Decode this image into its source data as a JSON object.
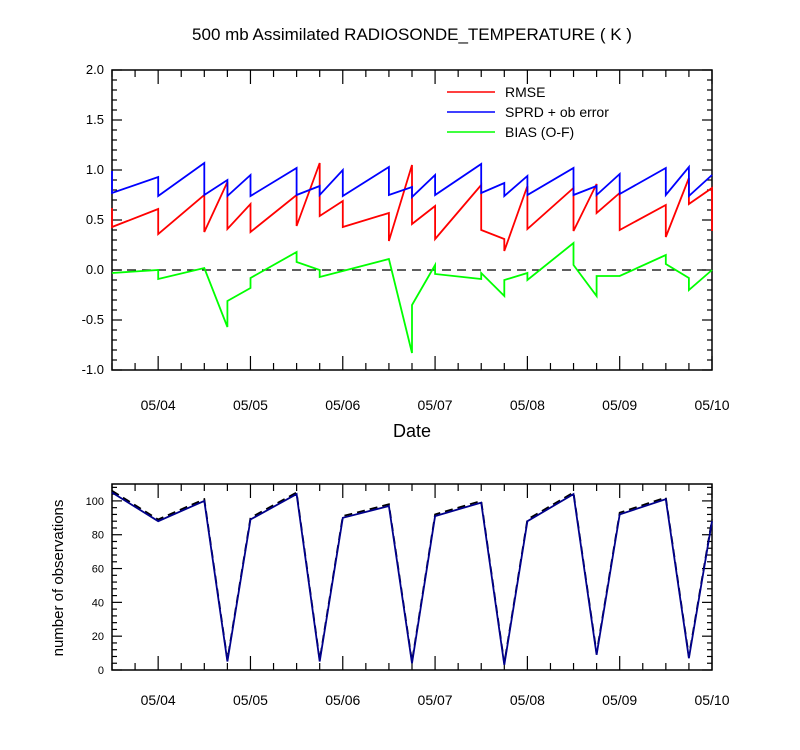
{
  "chart_data": [
    {
      "type": "line",
      "title": "500 mb Assimilated RADIOSONDE_TEMPERATURE ( K )",
      "xlabel": "Date",
      "ylabel": "",
      "ylim": [
        -1.0,
        2.0
      ],
      "xlim": [
        3.5,
        10.0
      ],
      "x_ticks": [
        4,
        5,
        6,
        7,
        8,
        9,
        10
      ],
      "x_tick_labels": [
        "05/04",
        "05/05",
        "05/06",
        "05/07",
        "05/08",
        "05/09",
        "05/10"
      ],
      "y_ticks": [
        -1.0,
        -0.5,
        0.0,
        0.5,
        1.0,
        1.5,
        2.0
      ],
      "y_tick_labels": [
        "-1.0",
        "-0.5",
        "0.0",
        "0.5",
        "1.0",
        "1.5",
        "2.0"
      ],
      "zero_line": "dashed",
      "grid": false,
      "legend": "top-right",
      "series": [
        {
          "name": "RMSE",
          "color": "#ff0000",
          "points": [
            [
              3.5,
              0.62
            ],
            [
              3.5,
              0.43
            ],
            [
              4.0,
              0.61
            ],
            [
              4.0,
              0.36
            ],
            [
              4.5,
              0.75
            ],
            [
              4.5,
              0.38
            ],
            [
              4.75,
              0.88
            ],
            [
              4.75,
              0.41
            ],
            [
              5.0,
              0.66
            ],
            [
              5.0,
              0.38
            ],
            [
              5.5,
              0.75
            ],
            [
              5.5,
              0.44
            ],
            [
              5.75,
              1.07
            ],
            [
              5.75,
              0.54
            ],
            [
              6.0,
              0.69
            ],
            [
              6.0,
              0.43
            ],
            [
              6.5,
              0.57
            ],
            [
              6.5,
              0.29
            ],
            [
              6.75,
              1.05
            ],
            [
              6.75,
              0.46
            ],
            [
              7.0,
              0.64
            ],
            [
              7.0,
              0.31
            ],
            [
              7.5,
              0.85
            ],
            [
              7.5,
              0.4
            ],
            [
              7.75,
              0.31
            ],
            [
              7.75,
              0.19
            ],
            [
              8.0,
              0.84
            ],
            [
              8.0,
              0.41
            ],
            [
              8.5,
              0.82
            ],
            [
              8.5,
              0.39
            ],
            [
              8.75,
              0.86
            ],
            [
              8.75,
              0.57
            ],
            [
              9.0,
              0.77
            ],
            [
              9.0,
              0.4
            ],
            [
              9.5,
              0.65
            ],
            [
              9.5,
              0.33
            ],
            [
              9.75,
              0.92
            ],
            [
              9.75,
              0.66
            ],
            [
              10.0,
              0.82
            ],
            [
              10.0,
              0.39
            ]
          ]
        },
        {
          "name": "SPRD + ob error",
          "color": "#0000ff",
          "points": [
            [
              3.5,
              0.99
            ],
            [
              3.5,
              0.77
            ],
            [
              4.0,
              0.93
            ],
            [
              4.0,
              0.74
            ],
            [
              4.5,
              1.07
            ],
            [
              4.5,
              0.75
            ],
            [
              4.75,
              0.9
            ],
            [
              4.75,
              0.74
            ],
            [
              5.0,
              0.95
            ],
            [
              5.0,
              0.74
            ],
            [
              5.5,
              1.02
            ],
            [
              5.5,
              0.75
            ],
            [
              5.75,
              0.84
            ],
            [
              5.75,
              0.75
            ],
            [
              6.0,
              1.0
            ],
            [
              6.0,
              0.74
            ],
            [
              6.5,
              1.03
            ],
            [
              6.5,
              0.75
            ],
            [
              6.75,
              0.83
            ],
            [
              6.75,
              0.73
            ],
            [
              7.0,
              0.95
            ],
            [
              7.0,
              0.75
            ],
            [
              7.5,
              1.06
            ],
            [
              7.5,
              0.77
            ],
            [
              7.75,
              0.87
            ],
            [
              7.75,
              0.74
            ],
            [
              8.0,
              0.94
            ],
            [
              8.0,
              0.75
            ],
            [
              8.5,
              1.02
            ],
            [
              8.5,
              0.75
            ],
            [
              8.75,
              0.84
            ],
            [
              8.75,
              0.75
            ],
            [
              9.0,
              0.96
            ],
            [
              9.0,
              0.76
            ],
            [
              9.5,
              1.02
            ],
            [
              9.5,
              0.75
            ],
            [
              9.75,
              1.03
            ],
            [
              9.75,
              0.74
            ],
            [
              10.0,
              0.95
            ]
          ]
        },
        {
          "name": "BIAS (O-F)",
          "color": "#00ff00",
          "points": [
            [
              3.5,
              -0.03
            ],
            [
              4.0,
              0.0
            ],
            [
              4.0,
              -0.09
            ],
            [
              4.5,
              0.02
            ],
            [
              4.75,
              -0.57
            ],
            [
              4.75,
              -0.31
            ],
            [
              5.0,
              -0.18
            ],
            [
              5.0,
              -0.08
            ],
            [
              5.5,
              0.18
            ],
            [
              5.5,
              0.08
            ],
            [
              5.75,
              0.0
            ],
            [
              5.75,
              -0.07
            ],
            [
              6.0,
              -0.01
            ],
            [
              6.5,
              0.11
            ],
            [
              6.75,
              -0.83
            ],
            [
              6.75,
              -0.35
            ],
            [
              7.0,
              0.05
            ],
            [
              7.0,
              -0.04
            ],
            [
              7.5,
              -0.09
            ],
            [
              7.5,
              -0.03
            ],
            [
              7.75,
              -0.26
            ],
            [
              7.75,
              -0.1
            ],
            [
              8.0,
              -0.03
            ],
            [
              8.0,
              -0.1
            ],
            [
              8.5,
              0.27
            ],
            [
              8.5,
              0.05
            ],
            [
              8.75,
              -0.26
            ],
            [
              8.75,
              -0.06
            ],
            [
              9.0,
              -0.06
            ],
            [
              9.5,
              0.15
            ],
            [
              9.5,
              0.06
            ],
            [
              9.75,
              -0.08
            ],
            [
              9.75,
              -0.2
            ],
            [
              10.0,
              0.0
            ]
          ]
        }
      ]
    },
    {
      "type": "line",
      "title": "",
      "xlabel": "",
      "ylabel": "number of observations",
      "ylim": [
        0,
        110
      ],
      "xlim": [
        3.5,
        10.0
      ],
      "x_ticks": [
        4,
        5,
        6,
        7,
        8,
        9,
        10
      ],
      "x_tick_labels": [
        "05/04",
        "05/05",
        "05/06",
        "05/07",
        "05/08",
        "05/09",
        "05/10"
      ],
      "y_ticks": [
        0,
        20,
        40,
        60,
        80,
        100
      ],
      "y_tick_labels": [
        "0",
        "20",
        "40",
        "60",
        "80",
        "100"
      ],
      "grid": false,
      "series": [
        {
          "color": "#000000",
          "style": "dashed",
          "x": [
            3.5,
            4.0,
            4.5,
            4.75,
            5.0,
            5.5,
            5.75,
            6.0,
            6.5,
            6.75,
            7.0,
            7.5,
            7.75,
            8.0,
            8.5,
            8.75,
            9.0,
            9.5,
            9.75,
            10.0
          ],
          "values": [
            106,
            89,
            101,
            6,
            90,
            105,
            6,
            91,
            98,
            5,
            92,
            100,
            4,
            89,
            105,
            10,
            93,
            102,
            8,
            89
          ]
        },
        {
          "color": "#00008b",
          "style": "solid",
          "x": [
            3.5,
            4.0,
            4.5,
            4.75,
            5.0,
            5.5,
            5.75,
            6.0,
            6.5,
            6.75,
            7.0,
            7.5,
            7.75,
            8.0,
            8.5,
            8.75,
            9.0,
            9.5,
            9.75,
            10.0
          ],
          "values": [
            105,
            88,
            100,
            5,
            89,
            104,
            5,
            90,
            97,
            4,
            91,
            99,
            3,
            88,
            104,
            9,
            92,
            101,
            7,
            88
          ]
        }
      ]
    }
  ]
}
